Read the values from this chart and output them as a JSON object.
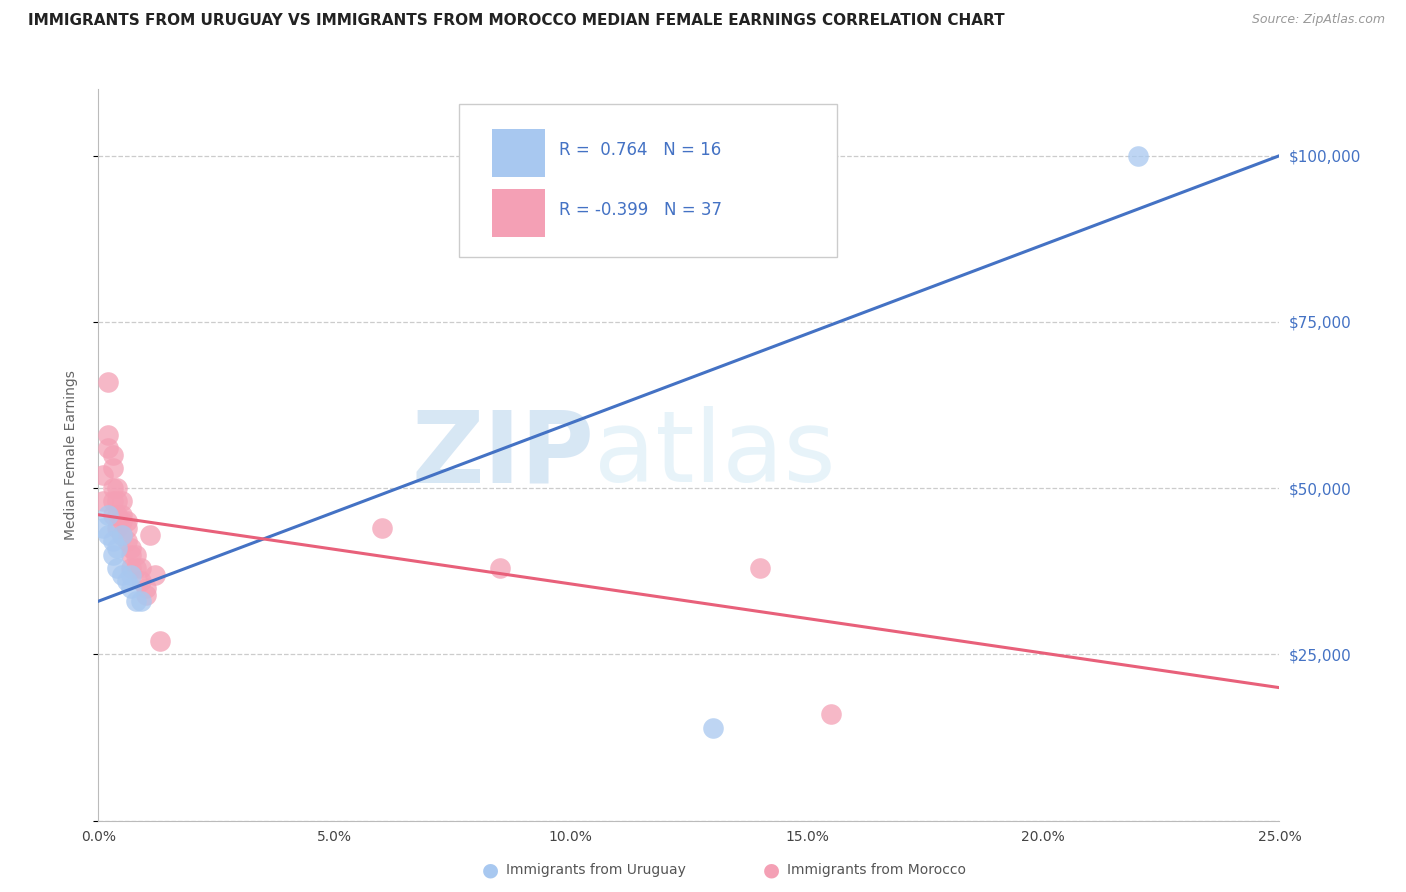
{
  "title": "IMMIGRANTS FROM URUGUAY VS IMMIGRANTS FROM MOROCCO MEDIAN FEMALE EARNINGS CORRELATION CHART",
  "source": "Source: ZipAtlas.com",
  "ylabel": "Median Female Earnings",
  "xmin": 0.0,
  "xmax": 0.25,
  "ymin": 0,
  "ymax": 110000,
  "yticks": [
    0,
    25000,
    50000,
    75000,
    100000
  ],
  "ytick_labels": [
    "",
    "$25,000",
    "$50,000",
    "$75,000",
    "$100,000"
  ],
  "watermark_zip": "ZIP",
  "watermark_atlas": "atlas",
  "legend_R1": "R = ",
  "legend_V1": " 0.764",
  "legend_N1": "  N = 16",
  "legend_R2": "R = ",
  "legend_V2": "-0.399",
  "legend_N2": "  N = 37",
  "uruguay_color": "#A8C8F0",
  "morocco_color": "#F4A0B5",
  "uruguay_line_color": "#4472C4",
  "morocco_line_color": "#E8607A",
  "uruguay_line_x0": 0.0,
  "uruguay_line_y0": 33000,
  "uruguay_line_x1": 0.25,
  "uruguay_line_y1": 100000,
  "morocco_line_x0": 0.0,
  "morocco_line_y0": 46000,
  "morocco_line_x1": 0.25,
  "morocco_line_y1": 20000,
  "uruguay_points_x": [
    0.001,
    0.002,
    0.002,
    0.003,
    0.003,
    0.004,
    0.004,
    0.005,
    0.005,
    0.006,
    0.007,
    0.007,
    0.008,
    0.009,
    0.22,
    0.13
  ],
  "uruguay_points_y": [
    44000,
    43000,
    46000,
    42000,
    40000,
    41000,
    38000,
    43000,
    37000,
    36000,
    35000,
    37000,
    33000,
    33000,
    100000,
    14000
  ],
  "morocco_points_x": [
    0.001,
    0.001,
    0.002,
    0.002,
    0.002,
    0.003,
    0.003,
    0.003,
    0.003,
    0.003,
    0.004,
    0.004,
    0.004,
    0.004,
    0.005,
    0.005,
    0.005,
    0.005,
    0.006,
    0.006,
    0.006,
    0.007,
    0.007,
    0.007,
    0.008,
    0.008,
    0.009,
    0.009,
    0.01,
    0.01,
    0.011,
    0.012,
    0.013,
    0.06,
    0.085,
    0.14,
    0.155
  ],
  "morocco_points_y": [
    52000,
    48000,
    66000,
    58000,
    56000,
    55000,
    53000,
    50000,
    48000,
    46000,
    50000,
    48000,
    46000,
    44000,
    48000,
    46000,
    45000,
    43000,
    45000,
    44000,
    42000,
    41000,
    40000,
    38000,
    40000,
    38000,
    38000,
    36000,
    35000,
    34000,
    43000,
    37000,
    27000,
    44000,
    38000,
    38000,
    16000
  ],
  "background_color": "#FFFFFF",
  "grid_color": "#CCCCCC",
  "title_fontsize": 11,
  "axis_label_fontsize": 10,
  "tick_fontsize": 10,
  "right_tick_color": "#4472C4",
  "legend_text_color": "#4472C4",
  "bottom_legend_color": "#555555"
}
